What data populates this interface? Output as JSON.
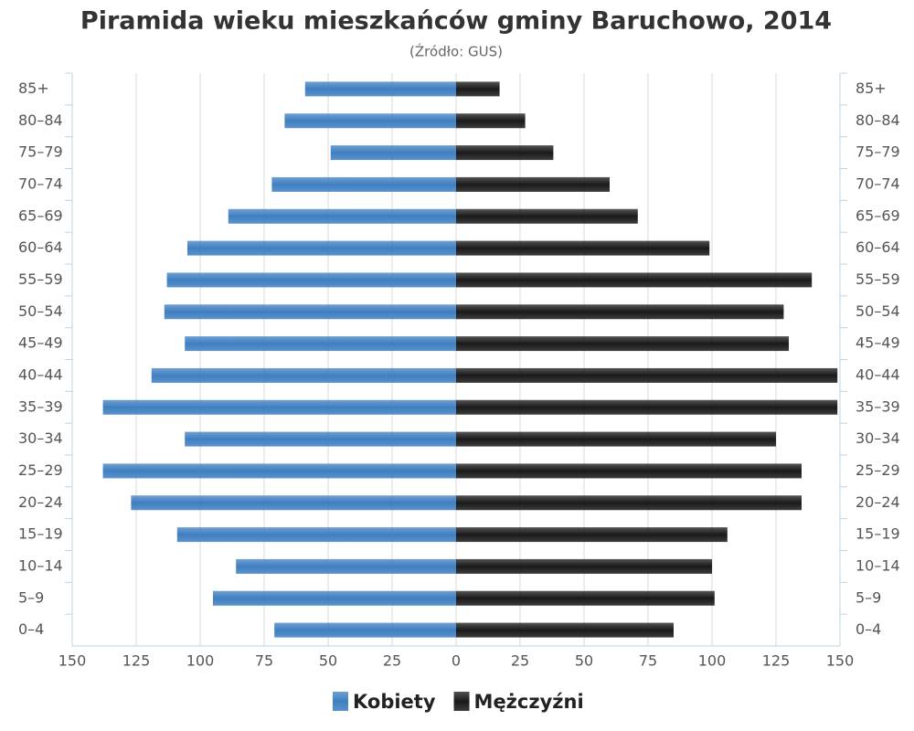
{
  "chart_data": {
    "type": "pyramid",
    "title": "Piramida wieku mieszkańców gminy Baruchowo, 2014",
    "subtitle": "(Źródło: GUS)",
    "categories": [
      "85+",
      "80–84",
      "75–79",
      "70–74",
      "65–69",
      "60–64",
      "55–59",
      "50–54",
      "45–49",
      "40–44",
      "35–39",
      "30–34",
      "25–29",
      "20–24",
      "15–19",
      "10–14",
      "5–9",
      "0–4"
    ],
    "series": [
      {
        "name": "Kobiety",
        "color": "#3f7fc1",
        "side": "left",
        "values": [
          59,
          67,
          49,
          72,
          89,
          105,
          113,
          114,
          106,
          119,
          138,
          106,
          138,
          127,
          109,
          86,
          95,
          71
        ]
      },
      {
        "name": "Mężczyźni",
        "color": "#1a1a1a",
        "side": "right",
        "values": [
          17,
          27,
          38,
          60,
          71,
          99,
          139,
          128,
          130,
          149,
          149,
          125,
          135,
          135,
          106,
          100,
          101,
          85
        ]
      }
    ],
    "xlim": [
      -150,
      150
    ],
    "xticks": [
      {
        "value": -150,
        "label": "150"
      },
      {
        "value": -125,
        "label": "125"
      },
      {
        "value": -100,
        "label": "100"
      },
      {
        "value": -75,
        "label": "75"
      },
      {
        "value": -50,
        "label": "50"
      },
      {
        "value": -25,
        "label": "25"
      },
      0,
      25,
      50,
      75,
      100,
      125,
      150
    ],
    "grid": true
  }
}
